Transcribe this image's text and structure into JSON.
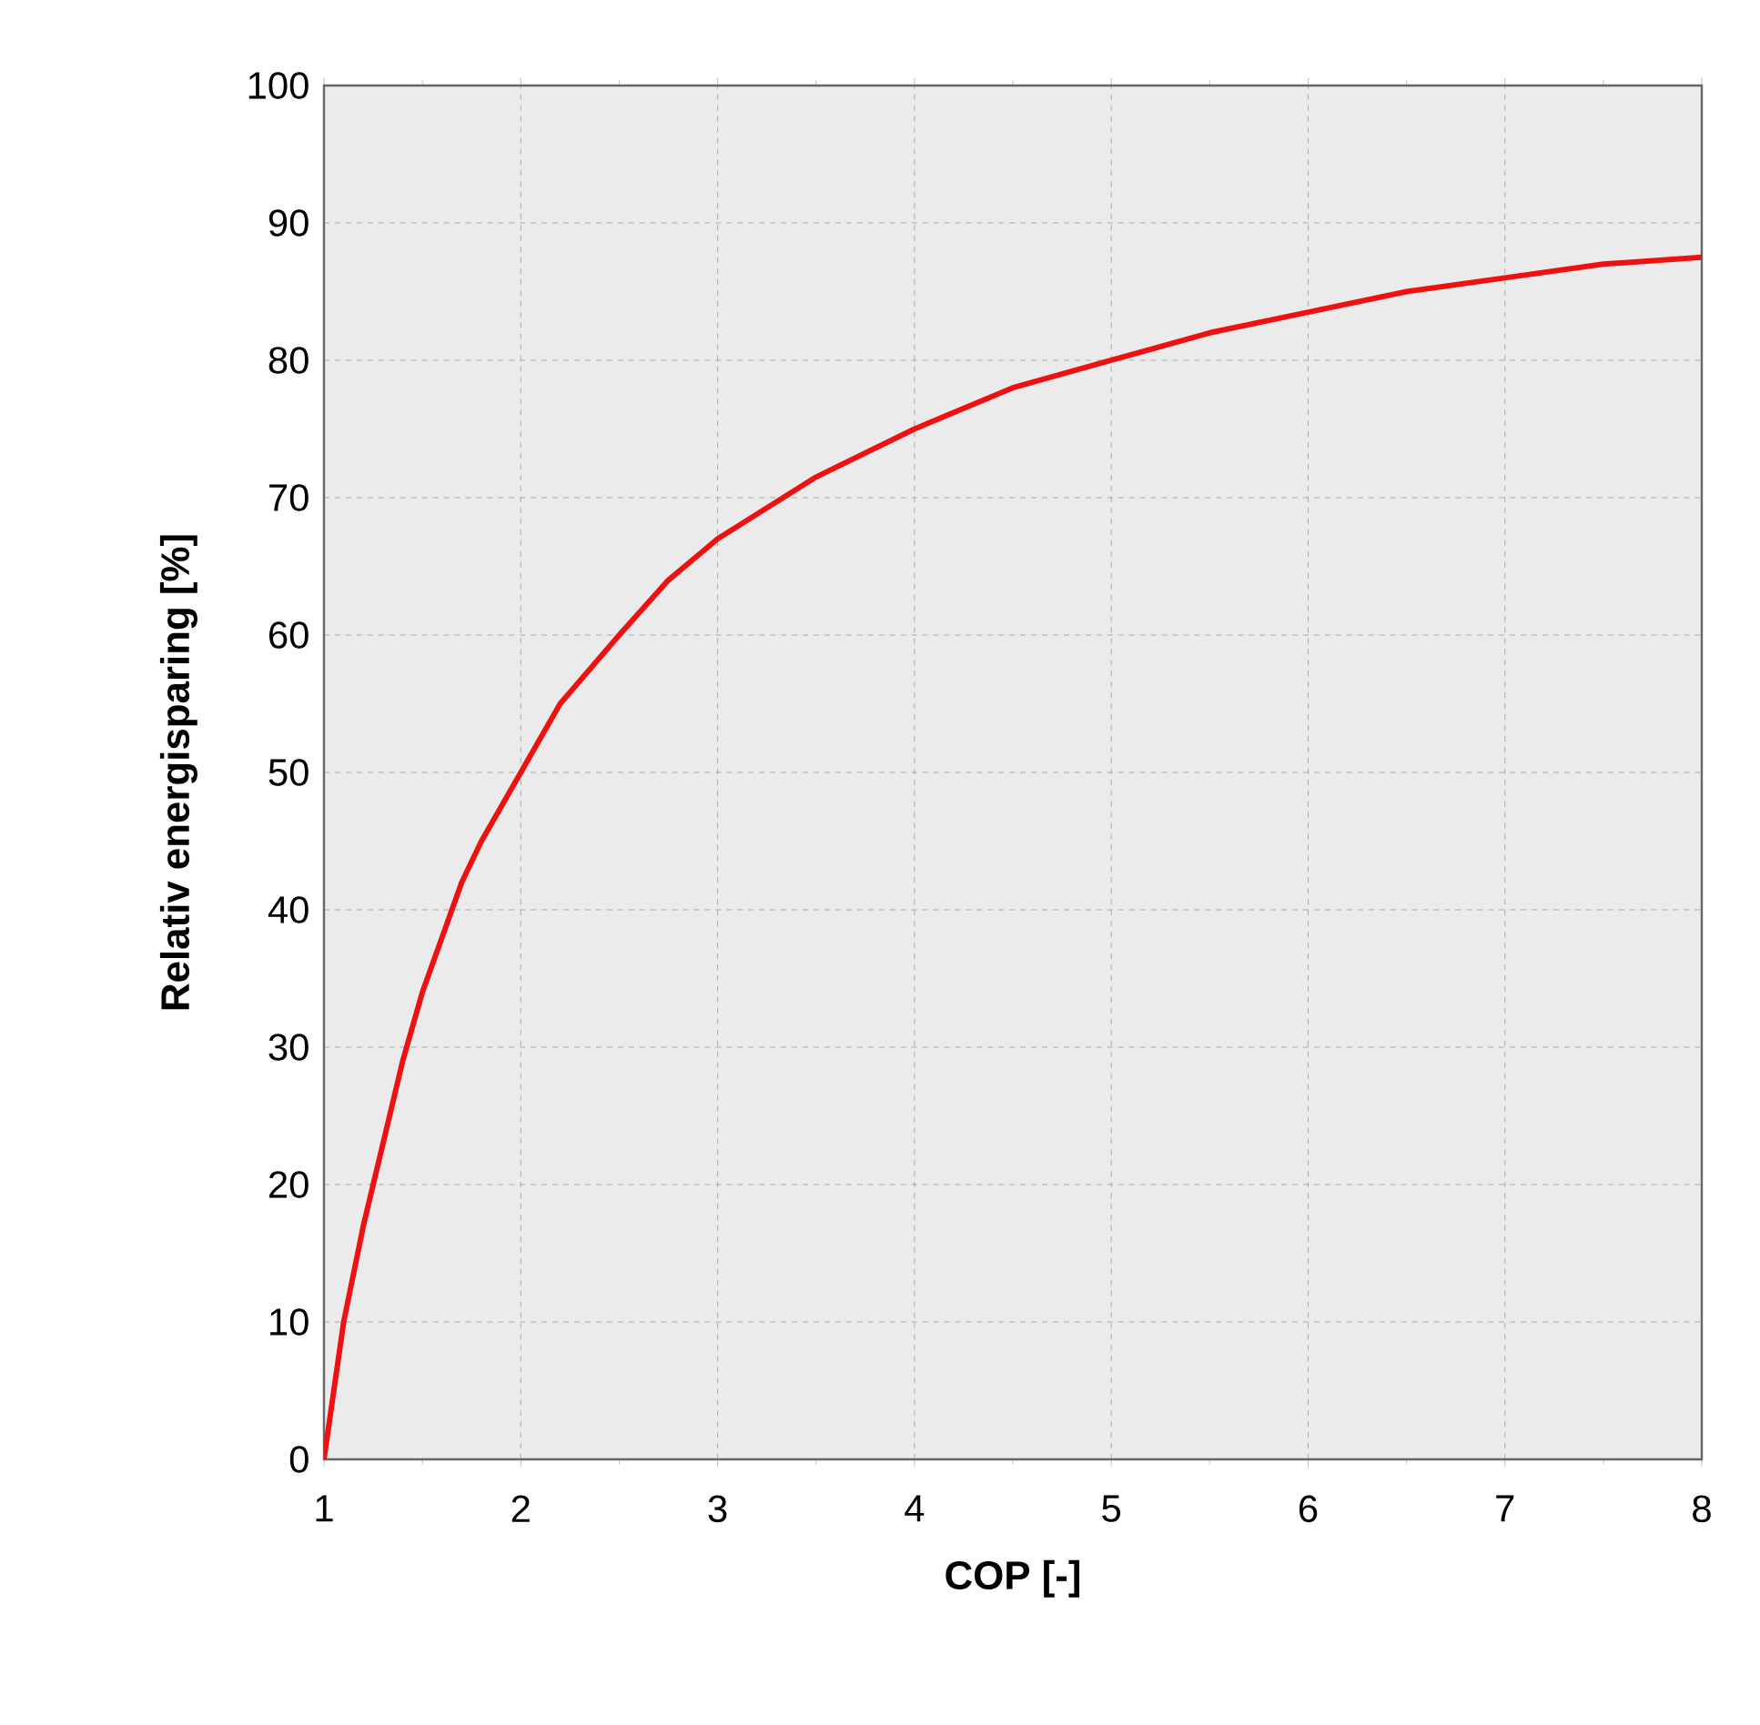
{
  "chart_data": {
    "type": "line",
    "xlabel": "COP [-]",
    "ylabel": "Relativ energisparing [%]",
    "x": [
      1,
      1.05,
      1.1,
      1.2,
      1.3,
      1.4,
      1.5,
      1.6,
      1.7,
      1.8,
      2,
      2.2,
      2.5,
      2.75,
      3,
      3.5,
      4,
      4.5,
      5,
      5.5,
      6,
      6.5,
      7,
      7.5,
      8
    ],
    "series": [
      {
        "color": "#ee1111",
        "values": [
          0,
          5,
          10,
          17,
          23,
          29,
          34,
          38,
          42,
          45,
          50,
          55,
          60,
          64,
          67,
          71.5,
          75,
          78,
          80,
          82,
          83.5,
          85,
          86,
          87,
          87.5
        ]
      }
    ],
    "xlim": [
      1,
      8
    ],
    "xticks": [
      1,
      2,
      3,
      4,
      5,
      6,
      7,
      8
    ],
    "ylim": [
      0,
      100
    ],
    "yticks": [
      0,
      10,
      20,
      30,
      40,
      50,
      60,
      70,
      80,
      90,
      100
    ],
    "grid": true,
    "marker": "none",
    "line_style": "solid"
  }
}
